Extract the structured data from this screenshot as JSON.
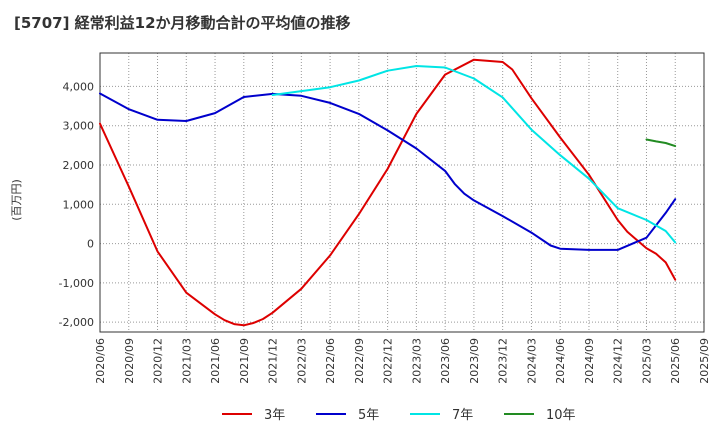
{
  "chart_data": {
    "type": "line",
    "title": "[5707]  経常利益12か月移動合計の平均値の推移",
    "ylabel": "(百万円)",
    "xlabel": "",
    "ylim": [
      -2250,
      4850
    ],
    "yticks": [
      -2000,
      -1000,
      0,
      1000,
      2000,
      3000,
      4000
    ],
    "ytick_labels": [
      "-2,000",
      "-1,000",
      "0",
      "1,000",
      "2,000",
      "3,000",
      "4,000"
    ],
    "xticks": [
      "2020/06",
      "2020/09",
      "2020/12",
      "2021/03",
      "2021/06",
      "2021/09",
      "2021/12",
      "2022/03",
      "2022/06",
      "2022/09",
      "2022/12",
      "2023/03",
      "2023/06",
      "2023/09",
      "2023/12",
      "2024/03",
      "2024/06",
      "2024/09",
      "2024/12",
      "2025/03",
      "2025/06",
      "2025/09"
    ],
    "grid": true,
    "legend_position": "bottom",
    "series": [
      {
        "name": "3年",
        "color": "#dd0000",
        "points": [
          [
            "2020/06",
            3050
          ],
          [
            "2020/09",
            1450
          ],
          [
            "2020/12",
            -200
          ],
          [
            "2021/03",
            -1250
          ],
          [
            "2021/06",
            -1800
          ],
          [
            "2021/07",
            -1950
          ],
          [
            "2021/08",
            -2050
          ],
          [
            "2021/09",
            -2080
          ],
          [
            "2021/10",
            -2020
          ],
          [
            "2021/11",
            -1920
          ],
          [
            "2021/12",
            -1760
          ],
          [
            "2022/03",
            -1150
          ],
          [
            "2022/06",
            -300
          ],
          [
            "2022/09",
            750
          ],
          [
            "2022/12",
            1900
          ],
          [
            "2023/03",
            3300
          ],
          [
            "2023/06",
            4300
          ],
          [
            "2023/09",
            4680
          ],
          [
            "2023/12",
            4620
          ],
          [
            "2024/01",
            4430
          ],
          [
            "2024/03",
            3700
          ],
          [
            "2024/06",
            2700
          ],
          [
            "2024/09",
            1750
          ],
          [
            "2024/12",
            600
          ],
          [
            "2025/01",
            300
          ],
          [
            "2025/03",
            -120
          ],
          [
            "2025/04",
            -260
          ],
          [
            "2025/05",
            -480
          ],
          [
            "2025/06",
            -920
          ]
        ]
      },
      {
        "name": "5年",
        "color": "#0000cc",
        "points": [
          [
            "2020/06",
            3820
          ],
          [
            "2020/09",
            3420
          ],
          [
            "2020/12",
            3150
          ],
          [
            "2021/03",
            3120
          ],
          [
            "2021/06",
            3320
          ],
          [
            "2021/09",
            3730
          ],
          [
            "2021/12",
            3810
          ],
          [
            "2022/03",
            3760
          ],
          [
            "2022/06",
            3580
          ],
          [
            "2022/09",
            3300
          ],
          [
            "2022/12",
            2880
          ],
          [
            "2023/03",
            2420
          ],
          [
            "2023/06",
            1850
          ],
          [
            "2023/07",
            1520
          ],
          [
            "2023/08",
            1270
          ],
          [
            "2023/09",
            1100
          ],
          [
            "2023/12",
            700
          ],
          [
            "2024/03",
            280
          ],
          [
            "2024/05",
            -50
          ],
          [
            "2024/06",
            -130
          ],
          [
            "2024/09",
            -160
          ],
          [
            "2024/12",
            -160
          ],
          [
            "2025/03",
            150
          ],
          [
            "2025/05",
            780
          ],
          [
            "2025/06",
            1130
          ]
        ]
      },
      {
        "name": "7年",
        "color": "#00e5e5",
        "points": [
          [
            "2021/12",
            3780
          ],
          [
            "2022/03",
            3880
          ],
          [
            "2022/06",
            3980
          ],
          [
            "2022/09",
            4150
          ],
          [
            "2022/12",
            4400
          ],
          [
            "2023/03",
            4520
          ],
          [
            "2023/06",
            4480
          ],
          [
            "2023/09",
            4200
          ],
          [
            "2023/12",
            3720
          ],
          [
            "2024/03",
            2900
          ],
          [
            "2024/06",
            2250
          ],
          [
            "2024/09",
            1650
          ],
          [
            "2024/12",
            900
          ],
          [
            "2025/03",
            600
          ],
          [
            "2025/05",
            320
          ],
          [
            "2025/06",
            30
          ]
        ]
      },
      {
        "name": "10年",
        "color": "#228b22",
        "points": [
          [
            "2025/03",
            2650
          ],
          [
            "2025/04",
            2600
          ],
          [
            "2025/05",
            2560
          ],
          [
            "2025/06",
            2480
          ]
        ]
      }
    ]
  }
}
